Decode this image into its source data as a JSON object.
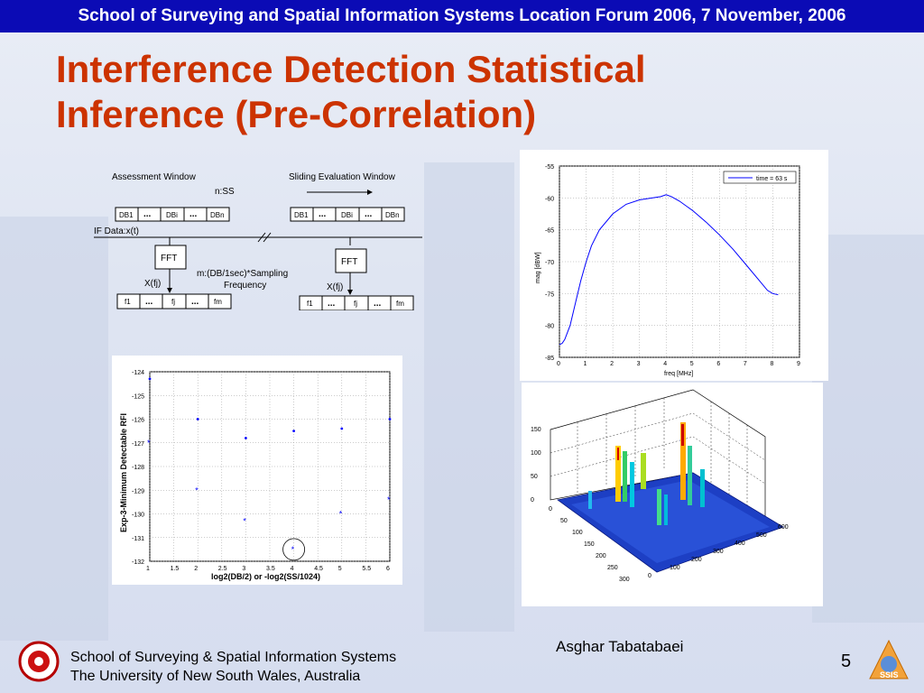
{
  "header": {
    "banner": "School of Surveying and Spatial Information Systems Location Forum 2006, 7 November, 2006"
  },
  "slide": {
    "title_line1": "Interference Detection Statistical",
    "title_line2": "Inference (Pre-Correlation)"
  },
  "diagram": {
    "assessment_window": "Assessment Window",
    "sliding_window": "Sliding Evaluation Window",
    "nss": "n:SS",
    "if_data": "IF Data:x(t)",
    "fft": "FFT",
    "xfj": "X(fj)",
    "sampling_line1": "m:(DB/1sec)*Sampling",
    "sampling_line2": "Frequency",
    "db_cells": [
      "DB1",
      "...",
      "DBi",
      "...",
      "DBn"
    ],
    "f_cells": [
      "f1",
      "...",
      "fj",
      "...",
      "fm"
    ]
  },
  "colors": {
    "banner": "#0b0bb5",
    "title": "#cc3300",
    "plot_line": "#0000ff"
  },
  "chart_data": [
    {
      "type": "line",
      "legend": "time = 63 s",
      "legend_position": "top-right",
      "xlabel": "freq [MHz]",
      "ylabel": "mag [dBW]",
      "xlim": [
        0,
        9
      ],
      "ylim": [
        -85,
        -55
      ],
      "xticks": [
        "0",
        "1",
        "2",
        "3",
        "4",
        "5",
        "6",
        "7",
        "8",
        "9"
      ],
      "yticks": [
        "-55",
        "-60",
        "-65",
        "-70",
        "-75",
        "-80",
        "-85"
      ],
      "x": [
        0.0,
        0.1,
        0.2,
        0.4,
        0.6,
        0.8,
        1.0,
        1.2,
        1.5,
        2.0,
        2.5,
        3.0,
        3.5,
        3.8,
        4.0,
        4.2,
        4.5,
        5.0,
        5.5,
        6.0,
        6.5,
        7.0,
        7.5,
        7.8,
        8.0,
        8.2
      ],
      "y": [
        -83,
        -82.8,
        -82.2,
        -80,
        -76.5,
        -73,
        -70,
        -67.5,
        -65,
        -62.5,
        -61,
        -60.3,
        -60,
        -59.8,
        -59.5,
        -59.8,
        -60.5,
        -62,
        -63.8,
        -65.8,
        -68,
        -70.5,
        -73,
        -74.5,
        -75,
        -75.2
      ],
      "grid": true
    },
    {
      "type": "scatter",
      "ylabel": "Exp-3-Minimum Detectable RFI",
      "xlabel": "log2(DB/2) or -log2(SS/1024)",
      "xlim": [
        1,
        6
      ],
      "ylim": [
        -132,
        -124
      ],
      "xticks": [
        "1",
        "1.5",
        "2",
        "2.5",
        "3",
        "3.5",
        "4",
        "4.5",
        "5",
        "5.5",
        "6"
      ],
      "yticks": [
        "-124",
        "-125",
        "-126",
        "-127",
        "-128",
        "-129",
        "-130",
        "-131",
        "-132"
      ],
      "series": [
        {
          "marker": "dot",
          "x": [
            1,
            2,
            3,
            4,
            5,
            6
          ],
          "y": [
            -124.3,
            -126,
            -126.8,
            -126.5,
            -126.4,
            -126
          ]
        },
        {
          "marker": "star",
          "x": [
            1,
            2,
            3,
            4,
            5,
            6
          ],
          "y": [
            -127,
            -129,
            -130.3,
            -131.5,
            -130,
            -129.4
          ]
        }
      ],
      "highlight": {
        "x": 4,
        "y": -131.5
      },
      "grid": true
    },
    {
      "type": "surface",
      "x_ticks": [
        "0",
        "100",
        "200",
        "300",
        "400",
        "500",
        "600"
      ],
      "y_ticks": [
        "0",
        "50",
        "100",
        "150",
        "200",
        "250",
        "300"
      ],
      "z_ticks": [
        "0",
        "50",
        "100",
        "150"
      ]
    }
  ],
  "footer": {
    "line1": "School of Surveying & Spatial Information Systems",
    "line2": "The University of New South Wales, Australia",
    "author": "Asghar Tabatabaei",
    "page_number": "5",
    "logo_right_text": "SSIS"
  }
}
